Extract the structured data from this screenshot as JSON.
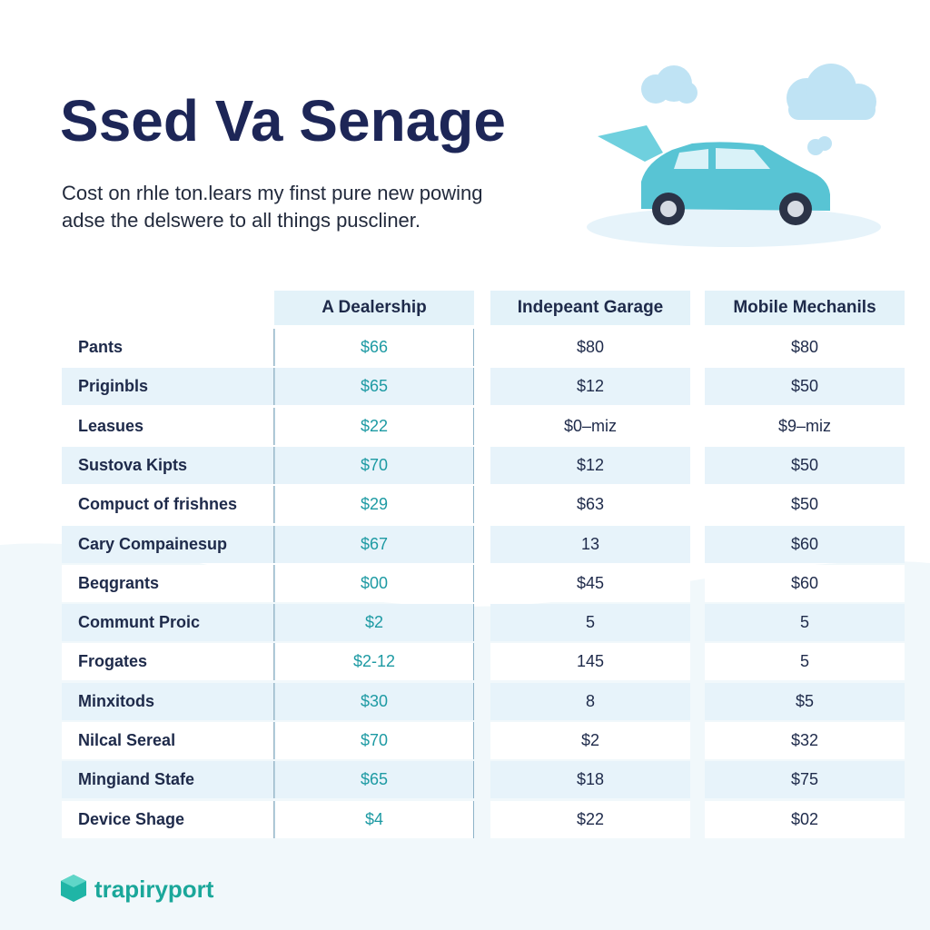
{
  "header": {
    "title": "Ssed Va Senage",
    "subtitle": [
      "Cost on rhle ton.lears my finst pure new powing",
      "adse the delswere to all things puscliner."
    ]
  },
  "table": {
    "columns": [
      "A Dealership",
      "Indepeant Garage",
      "Mobile Mechanils"
    ],
    "rows": [
      [
        "Pants",
        "$66",
        "$80",
        "$80"
      ],
      [
        "Priginbls",
        "$65",
        "$12",
        "$50"
      ],
      [
        "Leasues",
        "$22",
        "$0–miz",
        "$9–miz"
      ],
      [
        "Sustova Kipts",
        "$70",
        "$12",
        "$50"
      ],
      [
        "Compuct of frishnes",
        "$29",
        "$63",
        "$50"
      ],
      [
        "Cary Compainesup",
        "$67",
        "13",
        "$60"
      ],
      [
        "Beqgrants",
        "$00",
        "$45",
        "$60"
      ],
      [
        "Communt Proic",
        "$2",
        "5",
        "5"
      ],
      [
        "Frogates",
        "$2-12",
        "145",
        "5"
      ],
      [
        "Minxitods",
        "$30",
        "8",
        "$5"
      ],
      [
        "Nilcal Sereal",
        "$70",
        "$2",
        "$32"
      ],
      [
        "Mingiand Stafe",
        "$65",
        "$18",
        "$75"
      ],
      [
        "Device Shage",
        "$4",
        "$22",
        "$02"
      ]
    ]
  },
  "footer": {
    "brand": "trapiryport"
  }
}
